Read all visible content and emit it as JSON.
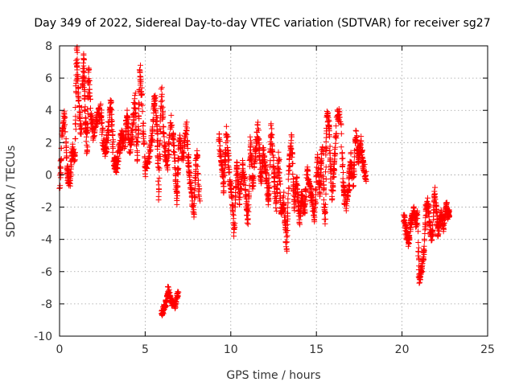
{
  "chart_data": {
    "type": "scatter",
    "title": "Day 349 of 2022, Sidereal Day-to-day VTEC variation (SDTVAR) for receiver sg27",
    "xlabel": "GPS time / hours",
    "ylabel": "SDTVAR / TECUs",
    "xlim": [
      0,
      25
    ],
    "ylim": [
      -10,
      8
    ],
    "xticks": [
      "0",
      "5",
      "10",
      "15",
      "20",
      "25"
    ],
    "yticks": [
      "-10",
      "-8",
      "-6",
      "-4",
      "-2",
      "0",
      "2",
      "4",
      "6",
      "8"
    ],
    "grid": true,
    "marker": "+",
    "color": "#ff0000",
    "trace": [
      [
        0.0,
        -1.0
      ],
      [
        0.15,
        2.5
      ],
      [
        0.3,
        3.6
      ],
      [
        0.45,
        0.2
      ],
      [
        0.6,
        -0.5
      ],
      [
        0.75,
        1.5
      ],
      [
        0.9,
        0.8
      ],
      [
        1.0,
        7.7
      ],
      [
        1.1,
        5.0
      ],
      [
        1.25,
        2.5
      ],
      [
        1.4,
        7.4
      ],
      [
        1.5,
        3.8
      ],
      [
        1.6,
        1.5
      ],
      [
        1.7,
        6.3
      ],
      [
        1.85,
        3.5
      ],
      [
        2.0,
        2.5
      ],
      [
        2.2,
        3.6
      ],
      [
        2.4,
        4.0
      ],
      [
        2.55,
        2.0
      ],
      [
        2.7,
        1.5
      ],
      [
        2.85,
        2.8
      ],
      [
        3.0,
        4.5
      ],
      [
        3.15,
        1.0
      ],
      [
        3.3,
        0.5
      ],
      [
        3.45,
        1.2
      ],
      [
        3.6,
        2.5
      ],
      [
        3.8,
        1.8
      ],
      [
        3.95,
        3.8
      ],
      [
        4.1,
        1.5
      ],
      [
        4.25,
        2.6
      ],
      [
        4.4,
        4.8
      ],
      [
        4.55,
        1.0
      ],
      [
        4.7,
        6.5
      ],
      [
        4.85,
        3.8
      ],
      [
        5.0,
        0.2
      ],
      [
        5.2,
        1.0
      ],
      [
        5.4,
        2.4
      ],
      [
        5.55,
        4.8
      ],
      [
        5.7,
        3.0
      ],
      [
        5.8,
        -1.5
      ],
      [
        5.95,
        5.2
      ],
      [
        6.1,
        2.0
      ],
      [
        6.3,
        0.5
      ],
      [
        6.5,
        3.5
      ],
      [
        6.7,
        1.5
      ],
      [
        6.85,
        -1.5
      ],
      [
        7.0,
        2.5
      ],
      [
        7.2,
        1.0
      ],
      [
        7.4,
        3.0
      ],
      [
        7.55,
        0.5
      ],
      [
        7.7,
        -1.0
      ],
      [
        7.85,
        -2.5
      ],
      [
        8.0,
        1.5
      ],
      [
        8.2,
        -1.8
      ],
      [
        9.3,
        2.2
      ],
      [
        9.45,
        1.0
      ],
      [
        9.6,
        -0.8
      ],
      [
        9.75,
        2.8
      ],
      [
        9.9,
        0.2
      ],
      [
        10.05,
        -1.2
      ],
      [
        10.2,
        -3.5
      ],
      [
        10.35,
        0.8
      ],
      [
        10.5,
        -1.5
      ],
      [
        10.7,
        0.5
      ],
      [
        10.85,
        -1.0
      ],
      [
        11.0,
        -3.0
      ],
      [
        11.15,
        2.0
      ],
      [
        11.3,
        -0.8
      ],
      [
        11.45,
        1.5
      ],
      [
        11.6,
        3.0
      ],
      [
        11.75,
        -0.5
      ],
      [
        11.9,
        1.5
      ],
      [
        12.05,
        0.0
      ],
      [
        12.2,
        -1.5
      ],
      [
        12.35,
        2.8
      ],
      [
        12.5,
        0.5
      ],
      [
        12.65,
        -2.0
      ],
      [
        12.8,
        1.0
      ],
      [
        12.95,
        -2.5
      ],
      [
        13.1,
        -1.5
      ],
      [
        13.25,
        -4.5
      ],
      [
        13.4,
        0.3
      ],
      [
        13.55,
        2.5
      ],
      [
        13.7,
        -2.0
      ],
      [
        13.85,
        -0.2
      ],
      [
        14.0,
        -2.8
      ],
      [
        14.15,
        -1.2
      ],
      [
        14.3,
        -2.5
      ],
      [
        14.45,
        0.4
      ],
      [
        14.6,
        -0.8
      ],
      [
        14.75,
        -1.5
      ],
      [
        14.9,
        -2.5
      ],
      [
        15.05,
        1.0
      ],
      [
        15.2,
        -1.0
      ],
      [
        15.35,
        2.0
      ],
      [
        15.5,
        -3.3
      ],
      [
        15.6,
        4.0
      ],
      [
        15.75,
        3.0
      ],
      [
        15.9,
        -1.5
      ],
      [
        16.05,
        0.5
      ],
      [
        16.2,
        3.8
      ],
      [
        16.4,
        3.7
      ],
      [
        16.6,
        -1.0
      ],
      [
        16.75,
        -2.0
      ],
      [
        16.9,
        -0.5
      ],
      [
        17.0,
        1.0
      ],
      [
        17.15,
        -0.5
      ],
      [
        17.3,
        2.5
      ],
      [
        17.45,
        1.0
      ],
      [
        17.6,
        2.0
      ],
      [
        17.75,
        0.5
      ],
      [
        17.9,
        -0.2
      ]
    ],
    "cluster": [
      [
        5.95,
        -8.7
      ],
      [
        6.05,
        -8.4
      ],
      [
        6.15,
        -8.1
      ],
      [
        6.25,
        -7.8
      ],
      [
        6.35,
        -7.0
      ],
      [
        6.45,
        -7.6
      ],
      [
        6.55,
        -8.0
      ],
      [
        6.65,
        -7.9
      ],
      [
        6.75,
        -8.2
      ],
      [
        6.85,
        -7.6
      ],
      [
        6.95,
        -7.3
      ]
    ],
    "late": [
      [
        20.1,
        -2.5
      ],
      [
        20.2,
        -3.2
      ],
      [
        20.3,
        -3.8
      ],
      [
        20.4,
        -4.2
      ],
      [
        20.5,
        -3.0
      ],
      [
        20.6,
        -2.7
      ],
      [
        20.7,
        -2.2
      ],
      [
        20.8,
        -3.0
      ],
      [
        20.9,
        -2.5
      ],
      [
        21.0,
        -6.5
      ],
      [
        21.1,
        -6.0
      ],
      [
        21.2,
        -5.5
      ],
      [
        21.3,
        -4.5
      ],
      [
        21.4,
        -2.2
      ],
      [
        21.5,
        -1.6
      ],
      [
        21.6,
        -2.8
      ],
      [
        21.7,
        -4.0
      ],
      [
        21.8,
        -3.5
      ],
      [
        21.9,
        -1.0
      ],
      [
        22.0,
        -2.0
      ],
      [
        22.1,
        -3.5
      ],
      [
        22.2,
        -3.0
      ],
      [
        22.3,
        -2.4
      ],
      [
        22.4,
        -3.2
      ],
      [
        22.5,
        -2.6
      ],
      [
        22.6,
        -1.8
      ],
      [
        22.7,
        -2.5
      ],
      [
        22.8,
        -2.2
      ]
    ]
  }
}
